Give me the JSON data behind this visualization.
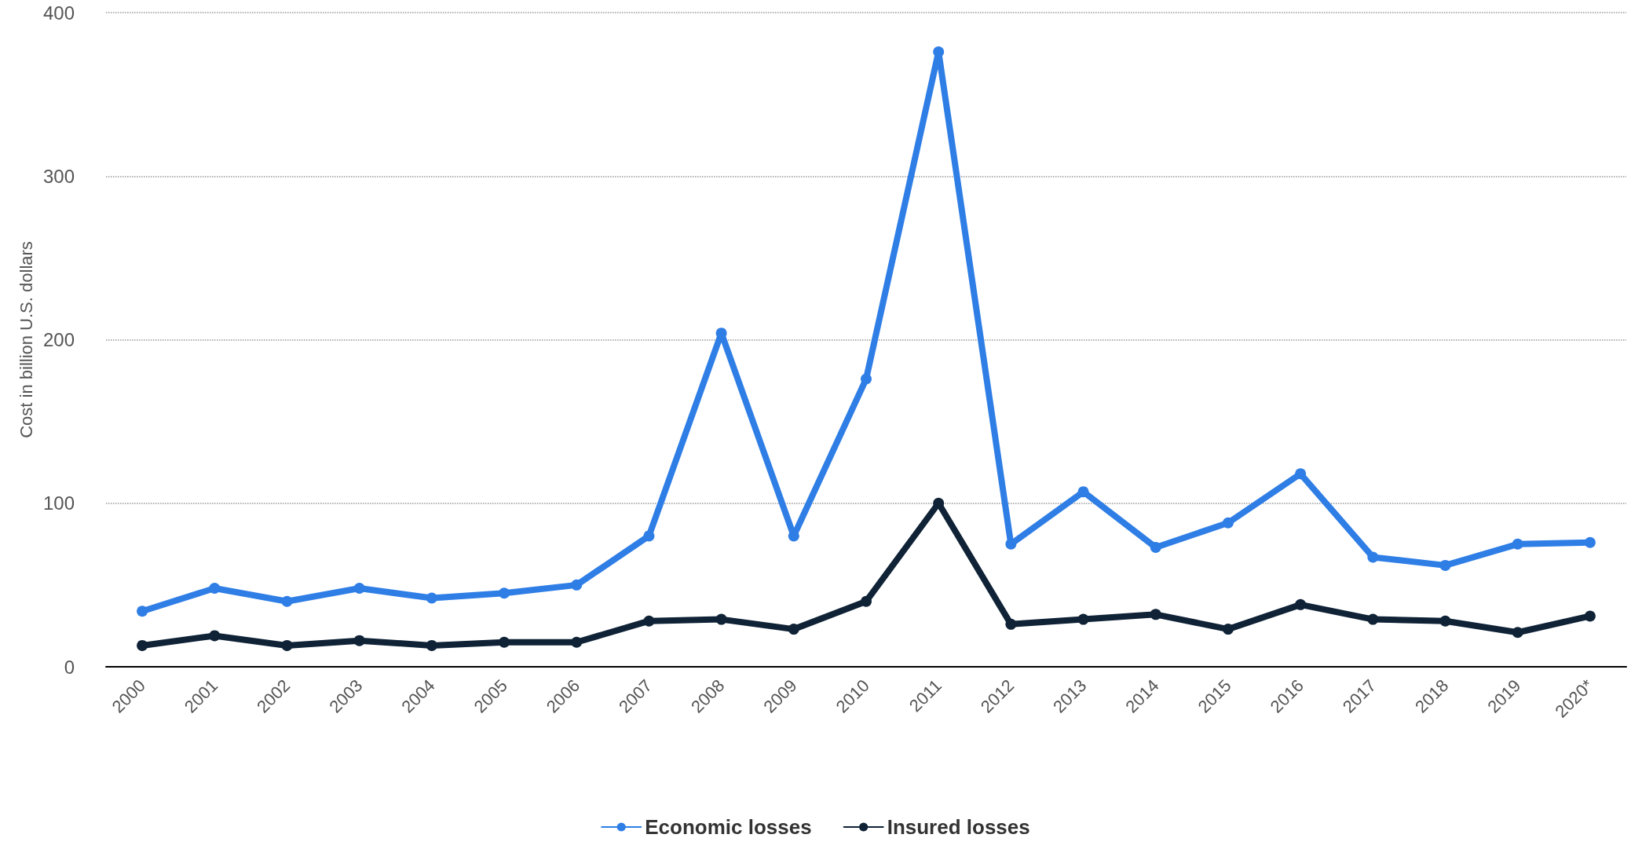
{
  "chart_data": {
    "type": "line",
    "ylabel": "Cost in billion U.S. dollars",
    "categories": [
      "2000",
      "2001",
      "2002",
      "2003",
      "2004",
      "2005",
      "2006",
      "2007",
      "2008",
      "2009",
      "2010",
      "2011",
      "2012",
      "2013",
      "2014",
      "2015",
      "2016",
      "2017",
      "2018",
      "2019",
      "2020*"
    ],
    "series": [
      {
        "name": "Economic losses",
        "color": "#2f7ee6",
        "values": [
          34,
          48,
          40,
          48,
          42,
          45,
          50,
          80,
          204,
          80,
          176,
          376,
          75,
          107,
          73,
          88,
          118,
          67,
          62,
          75,
          76
        ]
      },
      {
        "name": "Insured losses",
        "color": "#0f2236",
        "values": [
          13,
          19,
          13,
          16,
          13,
          15,
          15,
          28,
          29,
          23,
          40,
          100,
          26,
          29,
          32,
          23,
          38,
          29,
          28,
          21,
          31
        ]
      }
    ],
    "ylim": [
      0,
      400
    ],
    "yticks": [
      0,
      100,
      200,
      300,
      400
    ],
    "grid": "y",
    "legend": "bottom",
    "marker": "circle",
    "line_style": "solid"
  }
}
